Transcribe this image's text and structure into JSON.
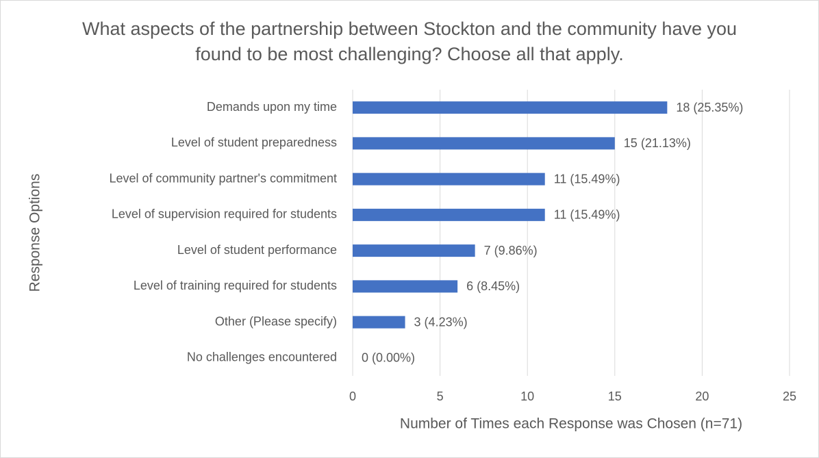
{
  "chart_data": {
    "type": "barh",
    "title": "What aspects of the partnership between Stockton and the community have you found to be most challenging? Choose all that apply.",
    "x_label": "Number of Times each Response was Chosen (n=71)",
    "y_label": "Response Options",
    "categories": [
      "Demands upon my time",
      "Level of student preparedness",
      "Level of community partner's commitment",
      "Level of supervision required for students",
      "Level of student performance",
      "Level of training required for students",
      "Other (Please specify)",
      "No challenges encountered"
    ],
    "values": [
      18,
      15,
      11,
      11,
      7,
      6,
      3,
      0
    ],
    "value_labels": [
      "18 (25.35%)",
      "15 (21.13%)",
      "11 (15.49%)",
      "11 (15.49%)",
      "7 (9.86%)",
      "6 (8.45%)",
      "3 (4.23%)",
      "0 (0.00%)"
    ],
    "color": "#4472c4",
    "xlim": [
      0,
      25
    ],
    "xticks": [
      0,
      5,
      10,
      15,
      20,
      25
    ],
    "grid": true
  }
}
